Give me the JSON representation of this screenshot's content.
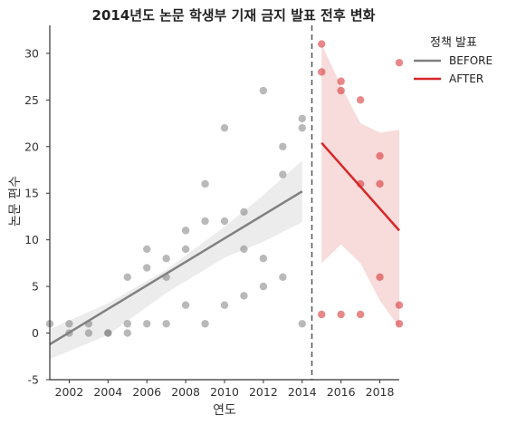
{
  "chart_data": {
    "type": "scatter",
    "title": "2014년도 논문 학생부 기재 금지 발표 전후 변화",
    "xlabel": "연도",
    "ylabel": "논문 편수",
    "xlim": [
      2001,
      2019
    ],
    "ylim": [
      -5,
      33
    ],
    "xticks": [
      2002,
      2004,
      2006,
      2008,
      2010,
      2012,
      2014,
      2016,
      2018
    ],
    "yticks": [
      -5,
      0,
      5,
      10,
      15,
      20,
      25,
      30
    ],
    "grid": false,
    "legend": {
      "title": "정책 발표",
      "placement": "top-right outside",
      "entries": [
        "BEFORE",
        "AFTER"
      ]
    },
    "colors": {
      "BEFORE": "#808080",
      "AFTER": "#d62728",
      "vline": "#555555"
    },
    "vline": {
      "x": 2014.5,
      "style": "dashed"
    },
    "series": [
      {
        "name": "BEFORE",
        "points": [
          [
            2001,
            1
          ],
          [
            2002,
            0
          ],
          [
            2002,
            1
          ],
          [
            2003,
            0
          ],
          [
            2003,
            1
          ],
          [
            2004,
            0
          ],
          [
            2004,
            0
          ],
          [
            2005,
            0
          ],
          [
            2005,
            1
          ],
          [
            2005,
            6
          ],
          [
            2006,
            1
          ],
          [
            2006,
            7
          ],
          [
            2006,
            9
          ],
          [
            2007,
            1
          ],
          [
            2007,
            6
          ],
          [
            2007,
            8
          ],
          [
            2008,
            3
          ],
          [
            2008,
            9
          ],
          [
            2008,
            11
          ],
          [
            2009,
            1
          ],
          [
            2009,
            12
          ],
          [
            2009,
            16
          ],
          [
            2010,
            3
          ],
          [
            2010,
            12
          ],
          [
            2010,
            22
          ],
          [
            2011,
            4
          ],
          [
            2011,
            9
          ],
          [
            2011,
            13
          ],
          [
            2012,
            5
          ],
          [
            2012,
            8
          ],
          [
            2012,
            26
          ],
          [
            2013,
            6
          ],
          [
            2013,
            17
          ],
          [
            2013,
            20
          ],
          [
            2014,
            1
          ],
          [
            2014,
            22
          ],
          [
            2014,
            23
          ]
        ],
        "fit": {
          "x": [
            2001,
            2014
          ],
          "y": [
            -1.2,
            15.2
          ]
        },
        "ci_upper": [
          [
            2001,
            0.4
          ],
          [
            2004,
            3.2
          ],
          [
            2007,
            6.8
          ],
          [
            2010,
            11.4
          ],
          [
            2012,
            14.8
          ],
          [
            2014,
            18.5
          ]
        ],
        "ci_lower": [
          [
            2001,
            -2.8
          ],
          [
            2004,
            -0.2
          ],
          [
            2007,
            4.3
          ],
          [
            2010,
            8.1
          ],
          [
            2012,
            9.8
          ],
          [
            2014,
            11.9
          ]
        ]
      },
      {
        "name": "AFTER",
        "points": [
          [
            2015,
            2
          ],
          [
            2015,
            28
          ],
          [
            2015,
            31
          ],
          [
            2016,
            2
          ],
          [
            2016,
            26
          ],
          [
            2016,
            27
          ],
          [
            2017,
            2
          ],
          [
            2017,
            16
          ],
          [
            2017,
            25
          ],
          [
            2018,
            6
          ],
          [
            2018,
            16
          ],
          [
            2018,
            19
          ],
          [
            2019,
            1
          ],
          [
            2019,
            3
          ],
          [
            2019,
            29
          ]
        ],
        "fit": {
          "x": [
            2015,
            2019
          ],
          "y": [
            20.4,
            11.0
          ]
        },
        "ci_upper": [
          [
            2015,
            31.0
          ],
          [
            2016,
            26.5
          ],
          [
            2017,
            22.5
          ],
          [
            2018,
            21.5
          ],
          [
            2019,
            21.8
          ]
        ],
        "ci_lower": [
          [
            2015,
            7.5
          ],
          [
            2016,
            9.5
          ],
          [
            2017,
            7.5
          ],
          [
            2018,
            3.5
          ],
          [
            2019,
            0.6
          ]
        ]
      }
    ]
  }
}
